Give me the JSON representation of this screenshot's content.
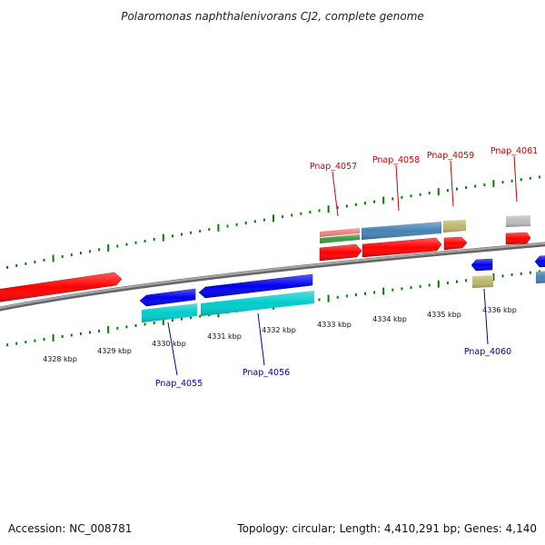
{
  "title": "Polaromonas naphthalenivorans CJ2, complete genome",
  "tick_labels": [
    "4328 kbp",
    "4329 kbp",
    "4330 kbp",
    "4331 kbp",
    "4332 kbp",
    "4333 kbp",
    "4334 kbp",
    "4335 kbp",
    "4336 kbp"
  ],
  "gene_labels_top": [
    "Pnap_4057",
    "Pnap_4058",
    "Pnap_4059",
    "Pnap_4061"
  ],
  "gene_labels_bottom": [
    "Pnap_4055",
    "Pnap_4056",
    "Pnap_4060"
  ],
  "footer": {
    "accession": "Accession: NC_008781",
    "topology": "Topology: circular; Length: 4,410,291 bp; Genes: 4,140"
  },
  "colors": {
    "cds_forward": "#ff0000",
    "cds_reverse": "#0000ee",
    "gene_teal": "#00cccc",
    "gene_steelblue": "#4682b4",
    "gene_olive": "#bdb76b",
    "gene_grey": "#bbbbbb",
    "gene_pink": "#f08080",
    "gene_green": "#3c9a3c",
    "tick": "#008000",
    "backbone": "#888888",
    "label_top": "#cc0000",
    "label_bottom": "#0000aa"
  }
}
